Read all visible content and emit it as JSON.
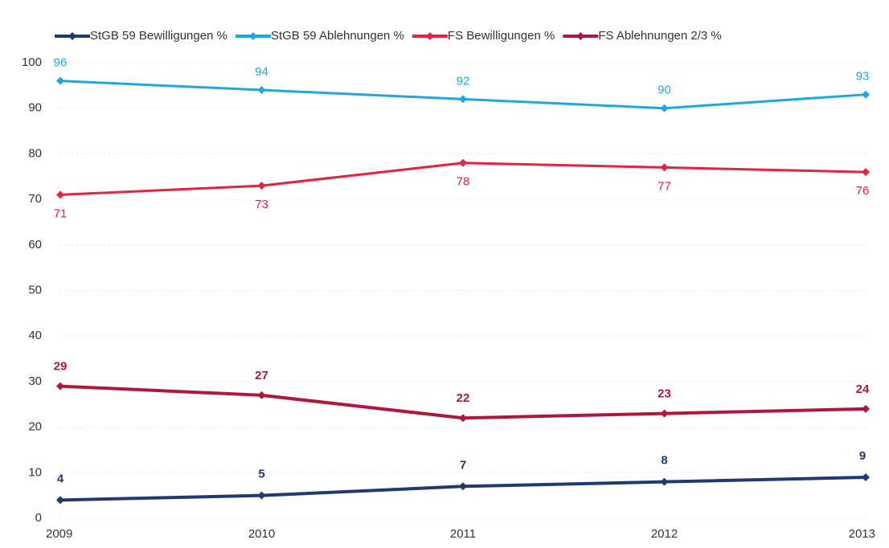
{
  "chart_data": {
    "type": "line",
    "categories": [
      "2009",
      "2010",
      "2011",
      "2012",
      "2013"
    ],
    "series": [
      {
        "name": "StGB 59 Bewilligungen %",
        "color": "#1f3a6e",
        "values": [
          4,
          5,
          7,
          8,
          9
        ]
      },
      {
        "name": "StGB 59 Ablehnungen %",
        "color": "#1fa8e0",
        "values": [
          96,
          94,
          92,
          90,
          93
        ]
      },
      {
        "name": "FS Bewilligungen %",
        "color": "#e8213f",
        "values": [
          71,
          73,
          78,
          77,
          76
        ]
      },
      {
        "name": "FS Ablehnungen 2/3 %",
        "color": "#b0173a",
        "values": [
          29,
          27,
          22,
          23,
          24
        ]
      }
    ],
    "ylim": [
      0,
      100
    ],
    "yticks": [
      0,
      10,
      20,
      30,
      40,
      50,
      60,
      70,
      80,
      90,
      100
    ],
    "grid": true,
    "legend": "top"
  }
}
